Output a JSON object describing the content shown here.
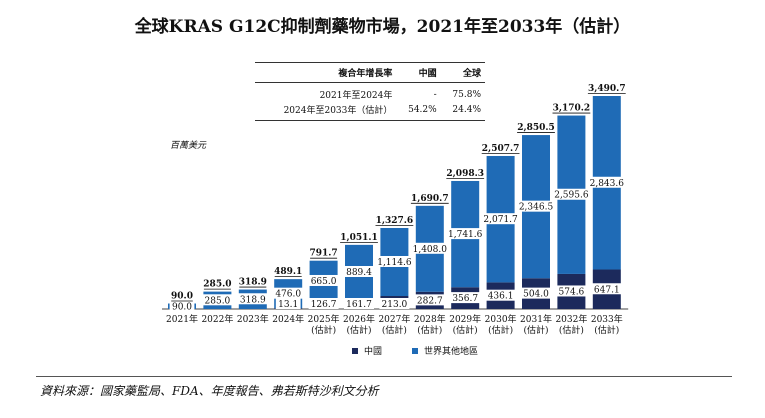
{
  "title": "全球KRAS G12C抑制劑藥物市場，2021年至2033年（估計）",
  "cagr_table": {
    "headers": [
      "複合年增長率",
      "中國",
      "全球"
    ],
    "rows": [
      {
        "period": "2021年至2024年",
        "china": "-",
        "global": "75.8%"
      },
      {
        "period": "2024年至2033年（估計）",
        "china": "54.2%",
        "global": "24.4%"
      }
    ]
  },
  "unit_label": "百萬美元",
  "source": "資料來源：國家藥監局、FDA、年度報告、弗若斯特沙利文分析",
  "colors": {
    "china": "#1c2a5c",
    "rest_of_world": "#1f6bb6"
  },
  "chart_data": {
    "type": "bar",
    "stacked": true,
    "categories": [
      "2021年",
      "2022年",
      "2023年",
      "2024年",
      "2025年\n(估計)",
      "2026年\n(估計)",
      "2027年\n(估計)",
      "2028年\n(估計)",
      "2029年\n(估計)",
      "2030年\n(估計)",
      "2031年\n(估計)",
      "2032年\n(估計)",
      "2033年\n(估計)"
    ],
    "series": [
      {
        "name": "中國",
        "values": [
          0,
          0,
          0,
          13.1,
          126.7,
          161.7,
          213.0,
          282.7,
          356.7,
          436.1,
          504.0,
          574.6,
          647.1
        ],
        "labels": [
          "",
          "",
          "",
          "13.1",
          "126.7",
          "161.7",
          "213.0",
          "282.7",
          "356.7",
          "436.1",
          "504.0",
          "574.6",
          "647.1"
        ]
      },
      {
        "name": "世界其他地區",
        "values": [
          90.0,
          285.0,
          318.9,
          476.0,
          665.0,
          889.4,
          1114.6,
          1408.0,
          1741.6,
          2071.7,
          2346.5,
          2595.6,
          2843.6
        ],
        "labels": [
          "90.0",
          "285.0",
          "318.9",
          "476.0",
          "665.0",
          "889.4",
          "1,114.6",
          "1,408.0",
          "1,741.6",
          "2,071.7",
          "2,346.5",
          "2,595.6",
          "2,843.6"
        ]
      }
    ],
    "totals": [
      90.0,
      285.0,
      318.9,
      489.1,
      791.7,
      1051.1,
      1327.6,
      1690.7,
      2098.3,
      2507.7,
      2850.5,
      3170.2,
      3490.7
    ],
    "total_labels": [
      "90.0",
      "285.0",
      "318.9",
      "489.1",
      "791.7",
      "1,051.1",
      "1,327.6",
      "1,690.7",
      "2,098.3",
      "2,507.7",
      "2,850.5",
      "3,170.2",
      "3,490.7"
    ],
    "ylim": [
      0,
      3490.7
    ],
    "grid": false,
    "legend_position": "bottom"
  }
}
